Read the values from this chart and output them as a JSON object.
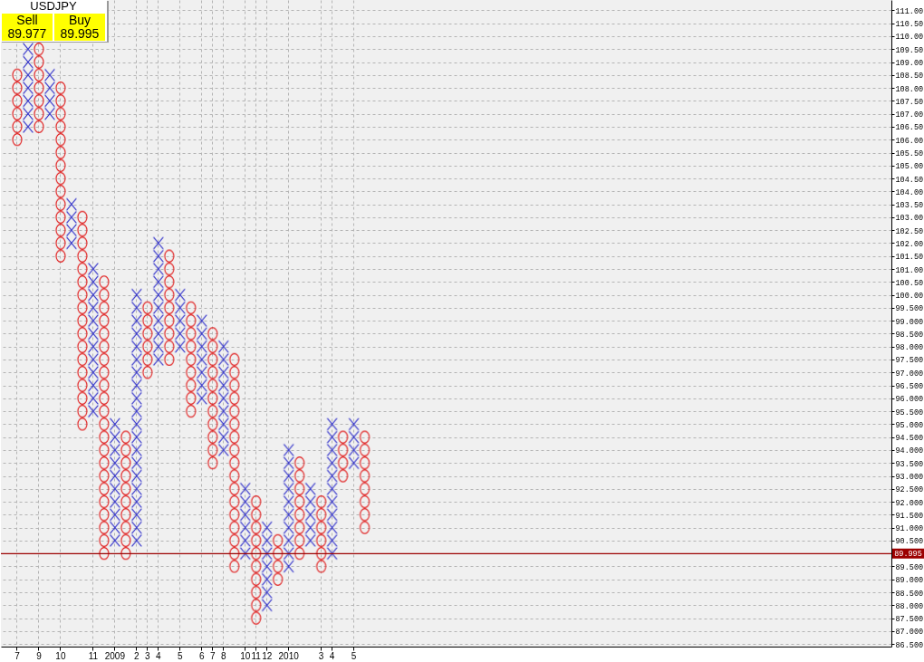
{
  "chart_data": {
    "type": "bar",
    "title": "USDJPY",
    "annotations": [
      "Sell",
      "89.977",
      "Buy",
      "89.995"
    ],
    "categories": [
      null,
      "7",
      null,
      "9",
      null,
      "10",
      null,
      null,
      "11",
      null,
      "2009",
      null,
      "2",
      "3",
      "4",
      null,
      "5",
      null,
      "6",
      "7",
      "8",
      null,
      "10",
      "11",
      "12",
      null,
      "2010",
      null,
      null,
      "3",
      "4",
      null,
      "5",
      null,
      null,
      null,
      null,
      null,
      null,
      null,
      null,
      null,
      null,
      null,
      null,
      null,
      null,
      null,
      null,
      null,
      null,
      null,
      null,
      null,
      null,
      null,
      null,
      null,
      null,
      null,
      null,
      null,
      null,
      null,
      null,
      null,
      null,
      null,
      null,
      null,
      null,
      null,
      null,
      null,
      null,
      null,
      null,
      null,
      null,
      null,
      null,
      null
    ],
    "ylim": [
      86.4,
      111.4
    ],
    "grid": true,
    "yticks": [
      {
        "value": 86.5,
        "label": "86.500"
      },
      {
        "value": 87,
        "label": "87.000"
      },
      {
        "value": 87.5,
        "label": "87.500"
      },
      {
        "value": 88,
        "label": "88.000"
      },
      {
        "value": 88.5,
        "label": "88.500"
      },
      {
        "value": 89,
        "label": "89.000"
      },
      {
        "value": 89.5,
        "label": "89.500"
      },
      {
        "value": 90,
        "label": null
      },
      {
        "value": 90.5,
        "label": "90.500"
      },
      {
        "value": 91,
        "label": "91.000"
      },
      {
        "value": 91.5,
        "label": "91.500"
      },
      {
        "value": 92,
        "label": "92.000"
      },
      {
        "value": 92.5,
        "label": "92.500"
      },
      {
        "value": 93,
        "label": "93.000"
      },
      {
        "value": 93.5,
        "label": "93.500"
      },
      {
        "value": 94,
        "label": "94.000"
      },
      {
        "value": 94.5,
        "label": "94.500"
      },
      {
        "value": 95,
        "label": "95.000"
      },
      {
        "value": 95.5,
        "label": "95.500"
      },
      {
        "value": 96,
        "label": "96.000"
      },
      {
        "value": 96.5,
        "label": "96.500"
      },
      {
        "value": 97,
        "label": "97.000"
      },
      {
        "value": 97.5,
        "label": "97.500"
      },
      {
        "value": 98,
        "label": "98.000"
      },
      {
        "value": 98.5,
        "label": "98.500"
      },
      {
        "value": 99,
        "label": "99.000"
      },
      {
        "value": 99.5,
        "label": "99.500"
      },
      {
        "value": 100,
        "label": "100.00"
      },
      {
        "value": 100.5,
        "label": "100.50"
      },
      {
        "value": 101,
        "label": "101.00"
      },
      {
        "value": 101.5,
        "label": "101.50"
      },
      {
        "value": 102,
        "label": "102.00"
      },
      {
        "value": 102.5,
        "label": "102.50"
      },
      {
        "value": 103,
        "label": "103.00"
      },
      {
        "value": 103.5,
        "label": "103.50"
      },
      {
        "value": 104,
        "label": "104.00"
      },
      {
        "value": 104.5,
        "label": "104.50"
      },
      {
        "value": 105,
        "label": "105.00"
      },
      {
        "value": 105.5,
        "label": "105.50"
      },
      {
        "value": 106,
        "label": "106.00"
      },
      {
        "value": 106.5,
        "label": "106.50"
      },
      {
        "value": 107,
        "label": "107.00"
      },
      {
        "value": 107.5,
        "label": "107.50"
      },
      {
        "value": 108,
        "label": "108.00"
      },
      {
        "value": 108.5,
        "label": "108.50"
      },
      {
        "value": 109,
        "label": "109.00"
      },
      {
        "value": 109.5,
        "label": "109.50"
      },
      {
        "value": 110,
        "label": "110.00"
      },
      {
        "value": 110.5,
        "label": "110.50"
      },
      {
        "value": 111,
        "label": "111.00"
      }
    ],
    "ref_lines": [
      {
        "axis": "y",
        "value": 89.995,
        "label": "89.995",
        "color": "#9c0000"
      }
    ],
    "series": [
      {
        "color": "#2a2ac8",
        "marker": "cross",
        "base": [
          null,
          null,
          106.25,
          null,
          106.75,
          null,
          101.75,
          null,
          95.25,
          null,
          90.25,
          null,
          90.25,
          null,
          97.25,
          null,
          97.75,
          null,
          95.75,
          null,
          93.75,
          null,
          89.75,
          null,
          87.75,
          null,
          89.25,
          null,
          90.25,
          null,
          89.75,
          null,
          93.25,
          null,
          null,
          null,
          null,
          null,
          null,
          null,
          null,
          null,
          null,
          null,
          null,
          null,
          null,
          null,
          null,
          null,
          null,
          null,
          null,
          null,
          null,
          null,
          null,
          null,
          null,
          null,
          null,
          null,
          null,
          null,
          null,
          null,
          null,
          null,
          null,
          null,
          null,
          null,
          null,
          null,
          null,
          null,
          null,
          null,
          null,
          null,
          null,
          null
        ],
        "values": [
          null,
          null,
          3.5,
          null,
          2,
          null,
          2,
          null,
          6,
          null,
          5,
          null,
          10,
          null,
          5,
          null,
          2.5,
          null,
          3.5,
          null,
          4.5,
          null,
          3,
          null,
          3.5,
          null,
          5,
          null,
          2.5,
          null,
          5.5,
          null,
          2,
          null,
          null,
          null,
          null,
          null,
          null,
          null,
          null,
          null,
          null,
          null,
          null,
          null,
          null,
          null,
          null,
          null,
          null,
          null,
          null,
          null,
          null,
          null,
          null,
          null,
          null,
          null,
          null,
          null,
          null,
          null,
          null,
          null,
          null,
          null,
          null,
          null,
          null,
          null,
          null,
          null,
          null,
          null,
          null,
          null,
          null,
          null,
          null,
          null
        ]
      },
      {
        "color": "#e01818",
        "marker": "circle",
        "base": [
          null,
          105.75,
          null,
          106.25,
          null,
          101.25,
          null,
          94.75,
          null,
          89.75,
          null,
          89.75,
          null,
          96.75,
          null,
          97.25,
          null,
          95.25,
          null,
          93.25,
          null,
          89.25,
          null,
          87.25,
          null,
          88.75,
          null,
          89.75,
          null,
          89.25,
          null,
          92.75,
          null,
          90.75,
          null,
          null,
          null,
          null,
          null,
          null,
          null,
          null,
          null,
          null,
          null,
          null,
          null,
          null,
          null,
          null,
          null,
          null,
          null,
          null,
          null,
          null,
          null,
          null,
          null,
          null,
          null,
          null,
          null,
          null,
          null,
          null,
          null,
          null,
          null,
          null,
          null,
          null,
          null,
          null,
          null,
          null,
          null,
          null,
          null,
          null,
          null,
          null
        ],
        "values": [
          null,
          3,
          null,
          3.5,
          null,
          7,
          null,
          8.5,
          null,
          11,
          null,
          5,
          null,
          3,
          null,
          4.5,
          null,
          4.5,
          null,
          5.5,
          null,
          8.5,
          null,
          5,
          null,
          2,
          null,
          4,
          null,
          3,
          null,
          2,
          null,
          4,
          null,
          null,
          null,
          null,
          null,
          null,
          null,
          null,
          null,
          null,
          null,
          null,
          null,
          null,
          null,
          null,
          null,
          null,
          null,
          null,
          null,
          null,
          null,
          null,
          null,
          null,
          null,
          null,
          null,
          null,
          null,
          null,
          null,
          null,
          null,
          null,
          null,
          null,
          null,
          null,
          null,
          null,
          null,
          null,
          null,
          null,
          null,
          null
        ]
      }
    ]
  }
}
